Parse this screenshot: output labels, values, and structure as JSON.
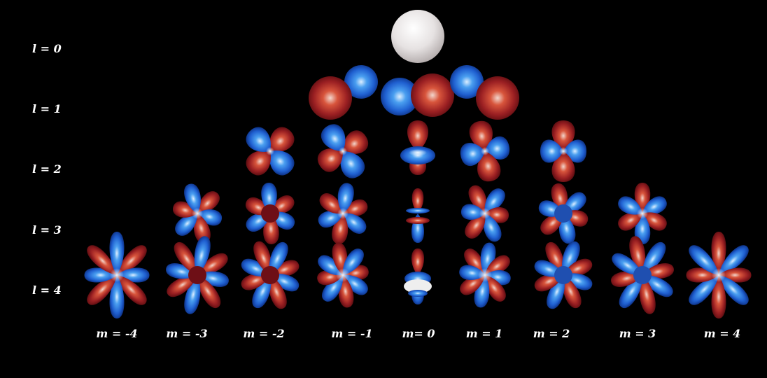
{
  "row_labels": [
    "l = 0",
    "l = 1",
    "l = 2",
    "l = 3",
    "l = 4"
  ],
  "column_labels": [
    "m = -4",
    "m = -3",
    "m = -2",
    "m = -1",
    "m= 0",
    "m = 1",
    "m = 2",
    "m = 3",
    "m = 4"
  ],
  "colors": {
    "background": "#000000",
    "positive_lobe": "#8b1a1a",
    "negative_lobe": "#1f5fd0",
    "highlight": "#ffffff",
    "s_orbital": "#e6e2e2"
  },
  "orbitals": [
    {
      "l": 0,
      "m": 0
    },
    {
      "l": 1,
      "m": -1
    },
    {
      "l": 1,
      "m": 0
    },
    {
      "l": 1,
      "m": 1
    },
    {
      "l": 2,
      "m": -2
    },
    {
      "l": 2,
      "m": -1
    },
    {
      "l": 2,
      "m": 0
    },
    {
      "l": 2,
      "m": 1
    },
    {
      "l": 2,
      "m": 2
    },
    {
      "l": 3,
      "m": -3
    },
    {
      "l": 3,
      "m": -2
    },
    {
      "l": 3,
      "m": -1
    },
    {
      "l": 3,
      "m": 0
    },
    {
      "l": 3,
      "m": 1
    },
    {
      "l": 3,
      "m": 2
    },
    {
      "l": 3,
      "m": 3
    },
    {
      "l": 4,
      "m": -4
    },
    {
      "l": 4,
      "m": -3
    },
    {
      "l": 4,
      "m": -2
    },
    {
      "l": 4,
      "m": -1
    },
    {
      "l": 4,
      "m": 0
    },
    {
      "l": 4,
      "m": 1
    },
    {
      "l": 4,
      "m": 2
    },
    {
      "l": 4,
      "m": 3
    },
    {
      "l": 4,
      "m": 4
    }
  ]
}
